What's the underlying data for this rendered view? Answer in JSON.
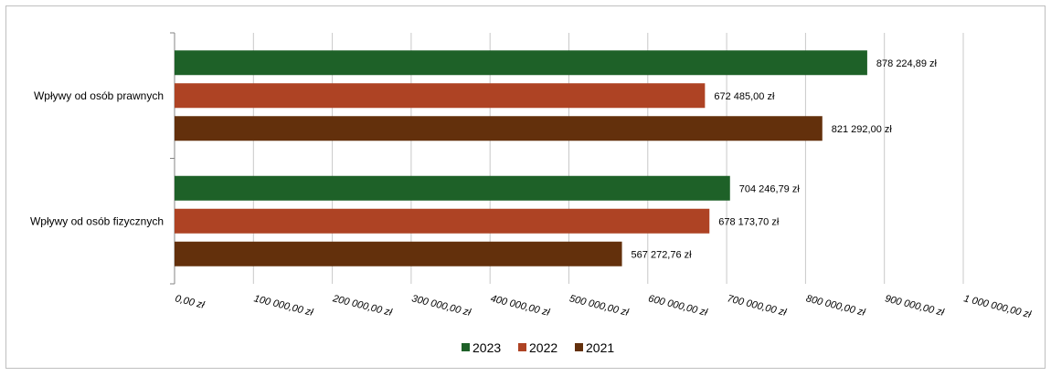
{
  "chart_data": {
    "type": "bar",
    "orientation": "horizontal",
    "categories": [
      "Wpływy od osób prawnych",
      "Wpływy od osób fizycznych"
    ],
    "series": [
      {
        "name": "2023",
        "color": "#1e6128",
        "values": [
          878224.89,
          704246.79
        ],
        "labels": [
          "878 224,89 zł",
          "704 246,79 zł"
        ]
      },
      {
        "name": "2022",
        "color": "#ae4324",
        "values": [
          672485.0,
          678173.7
        ],
        "labels": [
          "672 485,00 zł",
          "678 173,70 zł"
        ]
      },
      {
        "name": "2021",
        "color": "#63300c",
        "values": [
          821292.0,
          567272.76
        ],
        "labels": [
          "821 292,00 zł",
          "567 272,76 zł"
        ]
      }
    ],
    "xlim": [
      0,
      1000000
    ],
    "x_ticks": [
      0,
      100000,
      200000,
      300000,
      400000,
      500000,
      600000,
      700000,
      800000,
      900000,
      1000000
    ],
    "x_tick_labels": [
      "0,00 zł",
      "100 000,00 zł",
      "200 000,00 zł",
      "300 000,00 zł",
      "400 000,00 zł",
      "500 000,00 zł",
      "600 000,00 zł",
      "700 000,00 zł",
      "800 000,00 zł",
      "900 000,00 zł",
      "1 000 000,00 zł"
    ],
    "grid": true,
    "legend": "bottom",
    "title": "",
    "xlabel": "",
    "ylabel": ""
  }
}
